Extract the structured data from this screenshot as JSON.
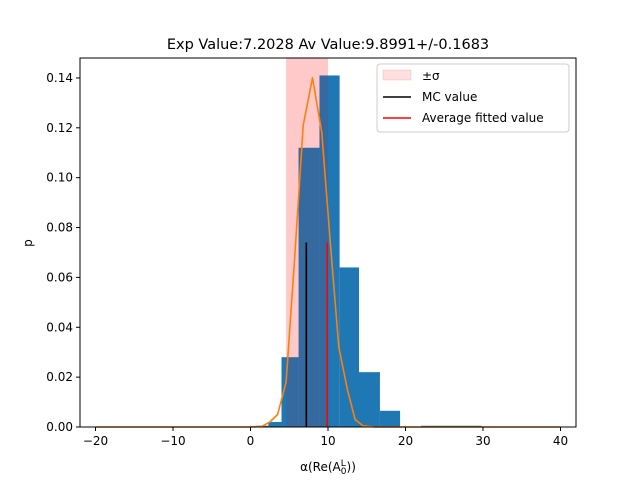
{
  "chart_data": {
    "type": "bar",
    "title": "Exp Value:7.2028 Av Value:9.8991+/-0.1683",
    "xlabel": "α(Re(A",
    "xlabel_sub": "0",
    "xlabel_sup": "L",
    "xlabel_end": "))",
    "ylabel": "p",
    "xlim": [
      -22,
      42
    ],
    "ylim": [
      0,
      0.148
    ],
    "xticks": [
      "−20",
      "−10",
      "0",
      "10",
      "20",
      "30",
      "40"
    ],
    "xtick_values": [
      -20,
      -10,
      0,
      10,
      20,
      30,
      40
    ],
    "yticks": [
      "0.00",
      "0.02",
      "0.04",
      "0.06",
      "0.08",
      "0.10",
      "0.12",
      "0.14"
    ],
    "ytick_values": [
      0,
      0.02,
      0.04,
      0.06,
      0.08,
      0.1,
      0.12,
      0.14
    ],
    "histogram": {
      "color": "#1f77b4",
      "bins": [
        {
          "x0": 0.7,
          "x1": 2.3,
          "value": 0.0005
        },
        {
          "x0": 2.3,
          "x1": 4.0,
          "value": 0.002
        },
        {
          "x0": 4.0,
          "x1": 6.2,
          "value": 0.028
        },
        {
          "x0": 6.2,
          "x1": 8.9,
          "value": 0.112
        },
        {
          "x0": 8.9,
          "x1": 11.5,
          "value": 0.141
        },
        {
          "x0": 11.5,
          "x1": 14.0,
          "value": 0.064
        },
        {
          "x0": 14.0,
          "x1": 16.7,
          "value": 0.022
        },
        {
          "x0": 16.7,
          "x1": 19.3,
          "value": 0.0065
        },
        {
          "x0": 22.0,
          "x1": 29.8,
          "value": 0.0005
        }
      ]
    },
    "sigma_band": {
      "x0": 4.6,
      "x1": 10.0,
      "color": "#ff0000",
      "opacity": 0.12
    },
    "fit_curve": {
      "color": "#ff7f0e",
      "x": [
        -20,
        -15,
        -10,
        -5,
        0,
        1.5,
        2.5,
        3.5,
        4.6,
        5.7,
        6.8,
        8.0,
        9.2,
        10.3,
        11.4,
        12.5,
        13.5,
        14.5,
        16,
        20,
        25,
        30,
        35,
        40
      ],
      "y": [
        0,
        0,
        0,
        0,
        0,
        0.0003,
        0.002,
        0.005,
        0.018,
        0.068,
        0.121,
        0.14,
        0.118,
        0.074,
        0.032,
        0.015,
        0.003,
        0.0005,
        0,
        0,
        0,
        0,
        0,
        0
      ]
    },
    "mc_value": {
      "x": 7.2028,
      "y": 0.074,
      "color": "#000000"
    },
    "avg_fitted": {
      "x": 9.8991,
      "y": 0.074,
      "color": "#ff0000"
    },
    "legend": {
      "placement": "top-right",
      "entries": [
        {
          "label": "±σ",
          "kind": "patch",
          "color": "#ff0000"
        },
        {
          "label": "MC value",
          "kind": "line",
          "color": "#000000"
        },
        {
          "label": "Average fitted value",
          "kind": "line",
          "color": "#ff0000"
        }
      ]
    }
  }
}
